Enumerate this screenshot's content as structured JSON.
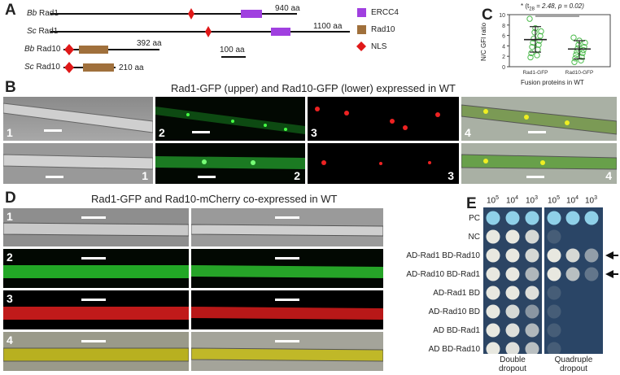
{
  "panels": {
    "A": "A",
    "B": "B",
    "C": "C",
    "D": "D",
    "E": "E"
  },
  "panelA": {
    "proteins": [
      {
        "species": "Bb",
        "name": "Rad1",
        "length": "940 aa"
      },
      {
        "species": "Sc",
        "name": "Rad1",
        "length": "1100 aa"
      },
      {
        "species": "Bb",
        "name": "Rad10",
        "length": "392 aa"
      },
      {
        "species": "Sc",
        "name": "Rad10",
        "length": "210 aa"
      }
    ],
    "legend": [
      {
        "label": "ERCC4",
        "color": "#a040e0"
      },
      {
        "label": "Rad10",
        "color": "#a0703c"
      },
      {
        "label": "NLS",
        "color": "#e01818"
      }
    ],
    "scale_bar": "100 aa"
  },
  "panelB": {
    "title": "Rad1-GFP (upper) and Rad10-GFP (lower) expressed in WT",
    "row1_numbers": [
      "1",
      "2",
      "3",
      "4"
    ],
    "row2_numbers": [
      "1",
      "2",
      "3",
      "4"
    ]
  },
  "panelC": {
    "ylabel": "N/C GFI ratio",
    "xlabel": "Fusion proteins in WT",
    "stat": "* (t",
    "stat_sub": "28",
    "stat_rest": " = 2.48, p = 0.02)",
    "chart_data": {
      "type": "scatter",
      "categories": [
        "Rad1-GFP",
        "Rad10-GFP"
      ],
      "yticks": [
        0,
        2,
        4,
        6,
        8,
        10
      ],
      "ylim": [
        0,
        10
      ],
      "series": [
        {
          "category": "Rad1-GFP",
          "mean": 5.2,
          "sd_low": 2.8,
          "sd_high": 7.7,
          "points": [
            9.2,
            7.4,
            6.8,
            6.6,
            5.9,
            5.4,
            5.0,
            4.6,
            4.2,
            3.8,
            3.3,
            2.6,
            2.2,
            1.8
          ]
        },
        {
          "category": "Rad10-GFP",
          "mean": 3.4,
          "sd_low": 1.5,
          "sd_high": 5.0,
          "points": [
            5.6,
            5.0,
            4.6,
            4.2,
            3.8,
            3.5,
            3.2,
            2.9,
            2.6,
            2.3,
            1.9,
            1.6,
            1.2,
            0.9
          ]
        }
      ]
    }
  },
  "panelD": {
    "title": "Rad1-GFP and Rad10-mCherry co-expressed in WT",
    "row_numbers": [
      "1",
      "2",
      "3",
      "4"
    ]
  },
  "panelE": {
    "dilutions": [
      "10",
      "5",
      "10",
      "4",
      "10",
      "3"
    ],
    "rows": [
      "PC",
      "NC",
      "AD-Rad1  BD-Rad10",
      "AD-Rad10  BD-Rad1",
      "AD-Rad1  BD",
      "AD-Rad10  BD",
      "AD  BD-Rad1",
      "AD  BD-Rad10"
    ],
    "plate_labels": [
      "Double dropout",
      "Quadruple dropout"
    ],
    "plate_labels_2": [
      "dropout",
      "dropout"
    ],
    "plate_labels_1": [
      "Double",
      "Quadruple"
    ]
  }
}
